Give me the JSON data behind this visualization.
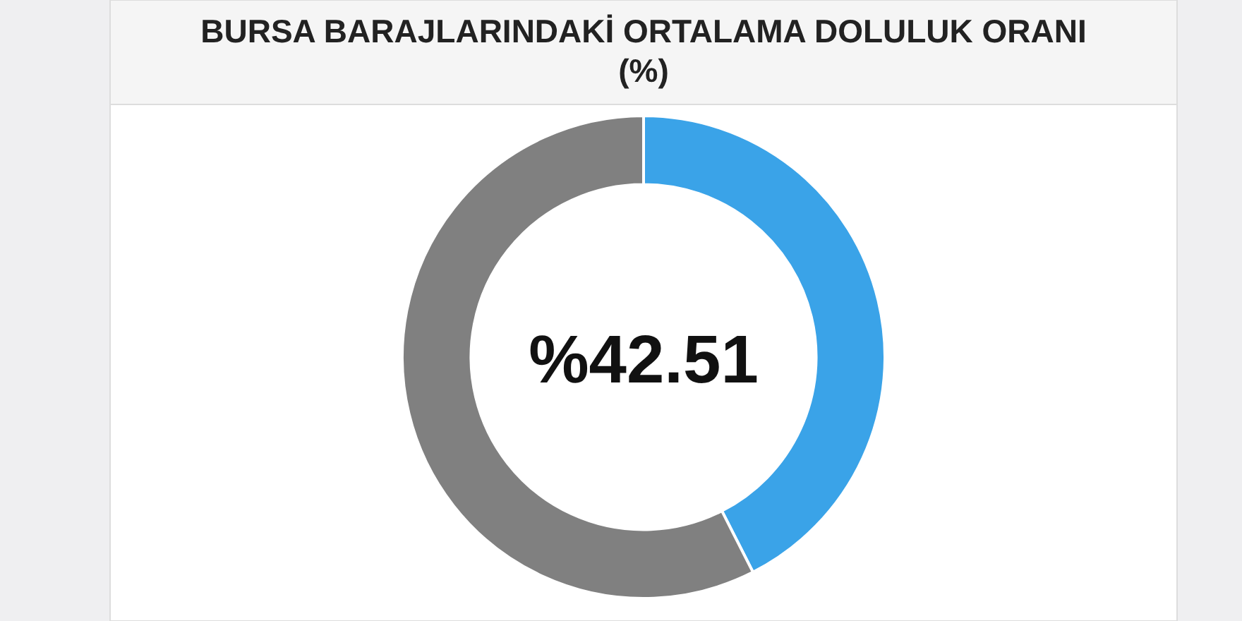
{
  "chart_data": {
    "type": "donut",
    "title": "BURSA BARAJLARINDAKİ ORTALAMA DOLULUK ORANI (%)",
    "categories": [
      null,
      null
    ],
    "values": [
      42.51,
      57.49
    ],
    "colors": [
      "#3aa3e8",
      "#808080"
    ],
    "annotations": [
      "%42.51"
    ]
  }
}
